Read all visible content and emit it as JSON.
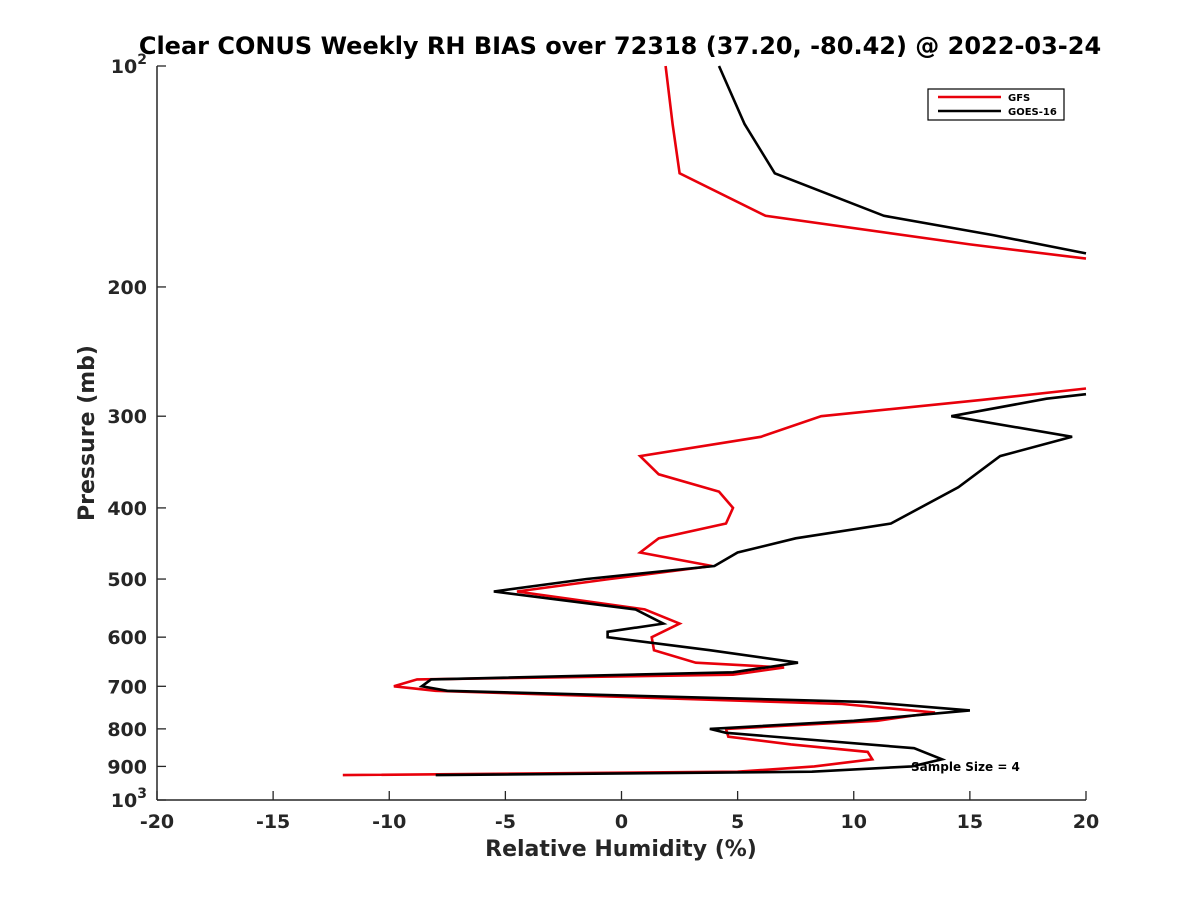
{
  "chart_data": {
    "type": "line",
    "title": "Clear CONUS Weekly RH BIAS over 72318 (37.20, -80.42) @ 2022-03-24",
    "xlabel": "Relative Humidity (%)",
    "ylabel": "Pressure (mb)",
    "xlim": [
      -20,
      20
    ],
    "ylim": [
      1000,
      100
    ],
    "y_scale": "log",
    "y_reversed": true,
    "x_ticks": [
      "-20",
      "-15",
      "-10",
      "-5",
      "0",
      "5",
      "10",
      "15",
      "20"
    ],
    "y_ticks": [
      {
        "value": 100,
        "label": "10",
        "sup": "2"
      },
      {
        "value": 200,
        "label": "200"
      },
      {
        "value": 300,
        "label": "300"
      },
      {
        "value": 400,
        "label": "400"
      },
      {
        "value": 500,
        "label": "500"
      },
      {
        "value": 600,
        "label": "600"
      },
      {
        "value": 700,
        "label": "700"
      },
      {
        "value": 800,
        "label": "800"
      },
      {
        "value": 900,
        "label": "900"
      },
      {
        "value": 1000,
        "label": "10",
        "sup": "3"
      }
    ],
    "grid": false,
    "legend_position": "top-right",
    "annotation": "Sample Size = 4",
    "series": [
      {
        "name": "GFS",
        "color": "#e8000b",
        "segments": [
          [
            [
              1.9,
              100
            ],
            [
              2.2,
              120
            ],
            [
              2.5,
              140
            ],
            [
              6.2,
              160
            ],
            [
              15,
              175
            ],
            [
              20,
              183
            ]
          ],
          [
            [
              20,
              275
            ],
            [
              15.5,
              285
            ],
            [
              8.6,
              300
            ],
            [
              6.0,
              320
            ],
            [
              0.8,
              340
            ],
            [
              1.6,
              360
            ],
            [
              4.2,
              380
            ],
            [
              4.8,
              400
            ],
            [
              4.5,
              420
            ],
            [
              1.6,
              440
            ],
            [
              0.8,
              460
            ],
            [
              3.9,
              480
            ],
            [
              -0.5,
              500
            ],
            [
              -4.5,
              520
            ],
            [
              1.0,
              550
            ],
            [
              2.5,
              575
            ],
            [
              1.3,
              600
            ],
            [
              1.4,
              625
            ],
            [
              3.2,
              650
            ],
            [
              7.0,
              660
            ],
            [
              4.8,
              675
            ],
            [
              -8.8,
              685
            ],
            [
              -9.8,
              700
            ],
            [
              -8.0,
              710
            ],
            [
              9.5,
              740
            ],
            [
              13.5,
              760
            ],
            [
              11.0,
              780
            ],
            [
              4.5,
              800
            ],
            [
              4.6,
              820
            ],
            [
              7.3,
              840
            ],
            [
              10.6,
              860
            ],
            [
              10.8,
              880
            ],
            [
              8.3,
              900
            ],
            [
              5.0,
              915
            ],
            [
              -12.0,
              925
            ]
          ]
        ]
      },
      {
        "name": "GOES-16",
        "color": "#000000",
        "segments": [
          [
            [
              4.2,
              100
            ],
            [
              5.3,
              120
            ],
            [
              6.6,
              140
            ],
            [
              11.3,
              160
            ],
            [
              16,
              170
            ],
            [
              20,
              180
            ]
          ],
          [
            [
              20,
              280
            ],
            [
              18.3,
              284
            ],
            [
              14.2,
              300
            ],
            [
              19.4,
              320
            ],
            [
              16.3,
              340
            ],
            [
              14.5,
              375
            ],
            [
              11.6,
              420
            ],
            [
              7.5,
              440
            ],
            [
              5.0,
              460
            ],
            [
              4.0,
              480
            ],
            [
              -1.5,
              500
            ],
            [
              -5.5,
              520
            ],
            [
              0.6,
              550
            ],
            [
              1.8,
              575
            ],
            [
              -0.6,
              590
            ],
            [
              -0.6,
              600
            ],
            [
              3.8,
              625
            ],
            [
              7.6,
              650
            ],
            [
              4.8,
              670
            ],
            [
              -8.2,
              685
            ],
            [
              -8.6,
              700
            ],
            [
              -7.5,
              710
            ],
            [
              10.5,
              735
            ],
            [
              15.0,
              755
            ],
            [
              10.0,
              780
            ],
            [
              3.8,
              800
            ],
            [
              4.5,
              810
            ],
            [
              12.6,
              850
            ],
            [
              13.8,
              880
            ],
            [
              12.5,
              900
            ],
            [
              8.2,
              915
            ],
            [
              -8.0,
              925
            ]
          ]
        ]
      }
    ]
  }
}
